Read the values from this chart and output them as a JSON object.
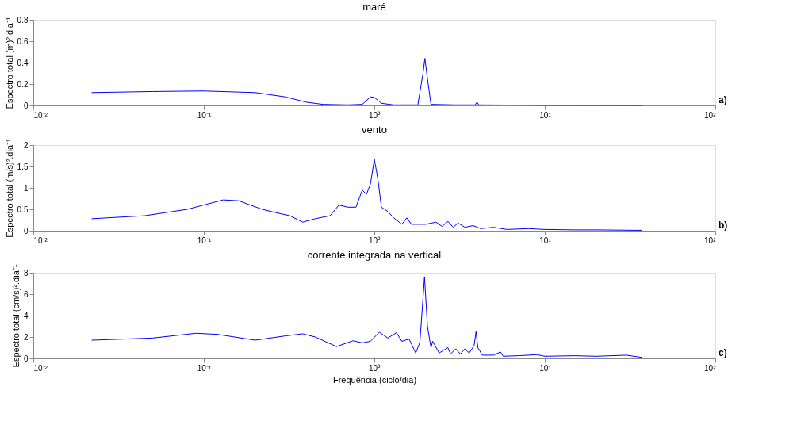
{
  "chart_data": [
    {
      "type": "line",
      "title": "maré",
      "ylabel": "Espectro total (m)².dia⁻¹",
      "xlim": [
        0.01,
        100
      ],
      "xticks": [
        {
          "value": 0.01,
          "label": "10⁻²"
        },
        {
          "value": 0.1,
          "label": "10⁻¹"
        },
        {
          "value": 1,
          "label": "10⁰"
        },
        {
          "value": 10,
          "label": "10¹"
        },
        {
          "value": 100,
          "label": "10²"
        }
      ],
      "ylim": [
        0,
        0.8
      ],
      "yticks": [
        0,
        0.2,
        0.4,
        0.6,
        0.8
      ],
      "log": "x",
      "grid": false,
      "line_style": "solid",
      "annotations": [
        "a)"
      ],
      "series": [
        {
          "color": "#0000ff",
          "x": [
            0.022,
            0.05,
            0.1,
            0.2,
            0.3,
            0.4,
            0.5,
            0.7,
            0.85,
            0.95,
            1.0,
            1.1,
            1.3,
            1.8,
            1.93,
            1.98,
            2.03,
            2.15,
            3,
            3.9,
            4.0,
            4.1,
            10,
            37
          ],
          "values": [
            0.12,
            0.13,
            0.135,
            0.12,
            0.08,
            0.03,
            0.01,
            0.005,
            0.01,
            0.08,
            0.075,
            0.02,
            0.005,
            0.005,
            0.3,
            0.44,
            0.3,
            0.01,
            0.005,
            0.005,
            0.03,
            0.005,
            0.002,
            0.001
          ]
        }
      ]
    },
    {
      "type": "line",
      "title": "vento",
      "ylabel": "Espectro total (m/s)².dia⁻¹",
      "xlim": [
        0.01,
        100
      ],
      "xticks": [
        {
          "value": 0.01,
          "label": "10⁻²"
        },
        {
          "value": 0.1,
          "label": "10⁻¹"
        },
        {
          "value": 1,
          "label": "10⁰"
        },
        {
          "value": 10,
          "label": "10¹"
        },
        {
          "value": 100,
          "label": "10²"
        }
      ],
      "ylim": [
        0,
        2
      ],
      "yticks": [
        0,
        0.5,
        1,
        1.5,
        2
      ],
      "log": "x",
      "grid": false,
      "line_style": "solid",
      "annotations": [
        "b)"
      ],
      "series": [
        {
          "color": "#0000ff",
          "x": [
            0.022,
            0.045,
            0.08,
            0.13,
            0.16,
            0.22,
            0.28,
            0.32,
            0.38,
            0.45,
            0.55,
            0.62,
            0.7,
            0.78,
            0.85,
            0.9,
            0.95,
            1.0,
            1.05,
            1.1,
            1.2,
            1.3,
            1.45,
            1.55,
            1.65,
            2.0,
            2.3,
            2.5,
            2.7,
            2.9,
            3.1,
            3.4,
            3.8,
            4.2,
            5,
            6,
            8,
            10,
            15,
            20,
            37
          ],
          "values": [
            0.28,
            0.35,
            0.5,
            0.72,
            0.7,
            0.5,
            0.4,
            0.35,
            0.2,
            0.28,
            0.35,
            0.6,
            0.55,
            0.55,
            0.95,
            0.85,
            1.1,
            1.67,
            1.2,
            0.55,
            0.45,
            0.3,
            0.15,
            0.3,
            0.15,
            0.15,
            0.2,
            0.1,
            0.22,
            0.08,
            0.18,
            0.08,
            0.12,
            0.05,
            0.08,
            0.03,
            0.05,
            0.03,
            0.02,
            0.02,
            0.01
          ]
        }
      ]
    },
    {
      "type": "line",
      "title": "corrente integrada na vertical",
      "xlabel": "Frequência (ciclo/dia)",
      "ylabel": "Espectro total (cm/s)².dia⁻¹",
      "xlim": [
        0.01,
        100
      ],
      "xticks": [
        {
          "value": 0.01,
          "label": "10⁻²"
        },
        {
          "value": 0.1,
          "label": "10⁻¹"
        },
        {
          "value": 1,
          "label": "10⁰"
        },
        {
          "value": 10,
          "label": "10¹"
        },
        {
          "value": 100,
          "label": "10²"
        }
      ],
      "ylim": [
        0,
        8
      ],
      "yticks": [
        0,
        2,
        4,
        6,
        8
      ],
      "log": "x",
      "grid": false,
      "line_style": "solid",
      "annotations": [
        "c)"
      ],
      "series": [
        {
          "color": "#0000ff",
          "x": [
            0.022,
            0.05,
            0.09,
            0.12,
            0.2,
            0.3,
            0.38,
            0.45,
            0.6,
            0.75,
            0.85,
            0.95,
            1.07,
            1.2,
            1.35,
            1.45,
            1.6,
            1.75,
            1.85,
            1.97,
            2.05,
            2.15,
            2.2,
            2.4,
            2.7,
            2.8,
            3.0,
            3.2,
            3.4,
            3.6,
            3.85,
            3.95,
            4.05,
            4.3,
            5,
            5.5,
            5.7,
            7,
            9,
            10,
            15,
            20,
            30,
            37
          ],
          "values": [
            1.7,
            1.9,
            2.35,
            2.25,
            1.7,
            2.1,
            2.3,
            2.0,
            1.1,
            1.65,
            1.45,
            1.6,
            2.45,
            1.9,
            2.4,
            1.6,
            1.8,
            0.5,
            1.5,
            7.6,
            3.0,
            1.0,
            1.6,
            0.5,
            1.0,
            0.4,
            0.9,
            0.4,
            0.9,
            0.5,
            1.2,
            2.5,
            1.0,
            0.3,
            0.3,
            0.6,
            0.2,
            0.25,
            0.35,
            0.2,
            0.25,
            0.2,
            0.3,
            0.1
          ]
        }
      ]
    }
  ]
}
